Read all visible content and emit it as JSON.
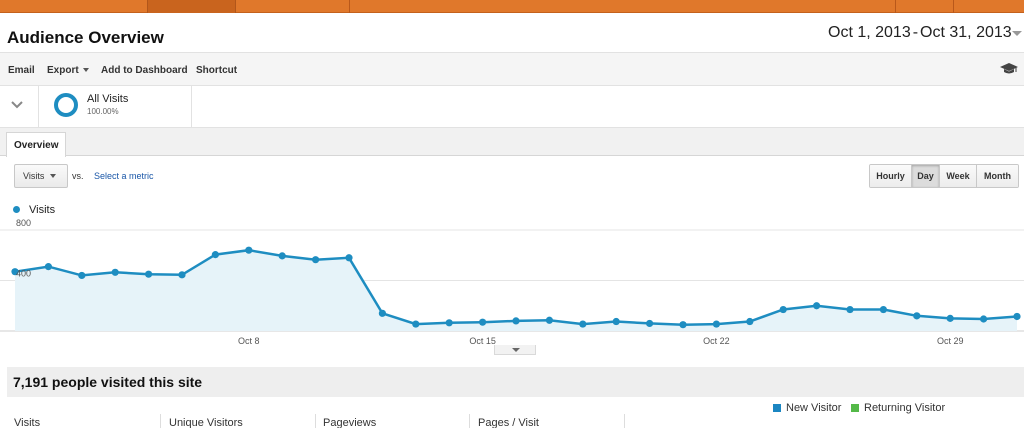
{
  "page_title": "Audience Overview",
  "date_range": {
    "start": "Oct 1, 2013",
    "separator": "-",
    "end": "Oct 31, 2013"
  },
  "toolbar": {
    "email": "Email",
    "export": "Export",
    "add_to_dashboard": "Add to Dashboard",
    "shortcut": "Shortcut"
  },
  "segment": {
    "name": "All Visits",
    "percent": "100.00%"
  },
  "tabs": [
    {
      "label": "Overview"
    }
  ],
  "metric_controls": {
    "selected_metric": "Visits",
    "vs_label": "vs.",
    "select_metric_link": "Select a metric"
  },
  "period_buttons": [
    {
      "label": "Hourly",
      "active": false
    },
    {
      "label": "Day",
      "active": true
    },
    {
      "label": "Week",
      "active": false
    },
    {
      "label": "Month",
      "active": false
    }
  ],
  "colors": {
    "accent": "#e0782b",
    "series_line": "#1e8dc1",
    "series_fill": "#e6f3f9",
    "new_visitor": "#1b86c2",
    "returning_visitor": "#54b948"
  },
  "chart_data": {
    "type": "area",
    "title": "",
    "series": [
      {
        "name": "Visits",
        "x": [
          1,
          2,
          3,
          4,
          5,
          6,
          7,
          8,
          9,
          10,
          11,
          12,
          13,
          14,
          15,
          16,
          17,
          18,
          19,
          20,
          21,
          22,
          23,
          24,
          25,
          26,
          27,
          28,
          29,
          30,
          31
        ],
        "values": [
          470,
          510,
          440,
          465,
          450,
          445,
          605,
          640,
          595,
          565,
          580,
          140,
          55,
          65,
          70,
          80,
          85,
          55,
          75,
          60,
          50,
          55,
          75,
          170,
          200,
          170,
          170,
          120,
          100,
          95,
          115
        ]
      }
    ],
    "x_tick_labels": [
      {
        "x": 8,
        "label": "Oct 8"
      },
      {
        "x": 15,
        "label": "Oct 15"
      },
      {
        "x": 22,
        "label": "Oct 22"
      },
      {
        "x": 29,
        "label": "Oct 29"
      }
    ],
    "y_ticks": [
      {
        "value": 400,
        "label": "400"
      },
      {
        "value": 800,
        "label": "800"
      }
    ],
    "ylim": [
      0,
      800
    ],
    "xlim": [
      1,
      31
    ],
    "grid": true,
    "legend": "top-left"
  },
  "summary": {
    "people_visited": "7,191 people visited this site"
  },
  "stats": [
    {
      "label": "Visits"
    },
    {
      "label": "Unique Visitors"
    },
    {
      "label": "Pageviews"
    },
    {
      "label": "Pages / Visit"
    }
  ],
  "visitor_legend": [
    {
      "label": "New Visitor"
    },
    {
      "label": "Returning Visitor"
    }
  ]
}
